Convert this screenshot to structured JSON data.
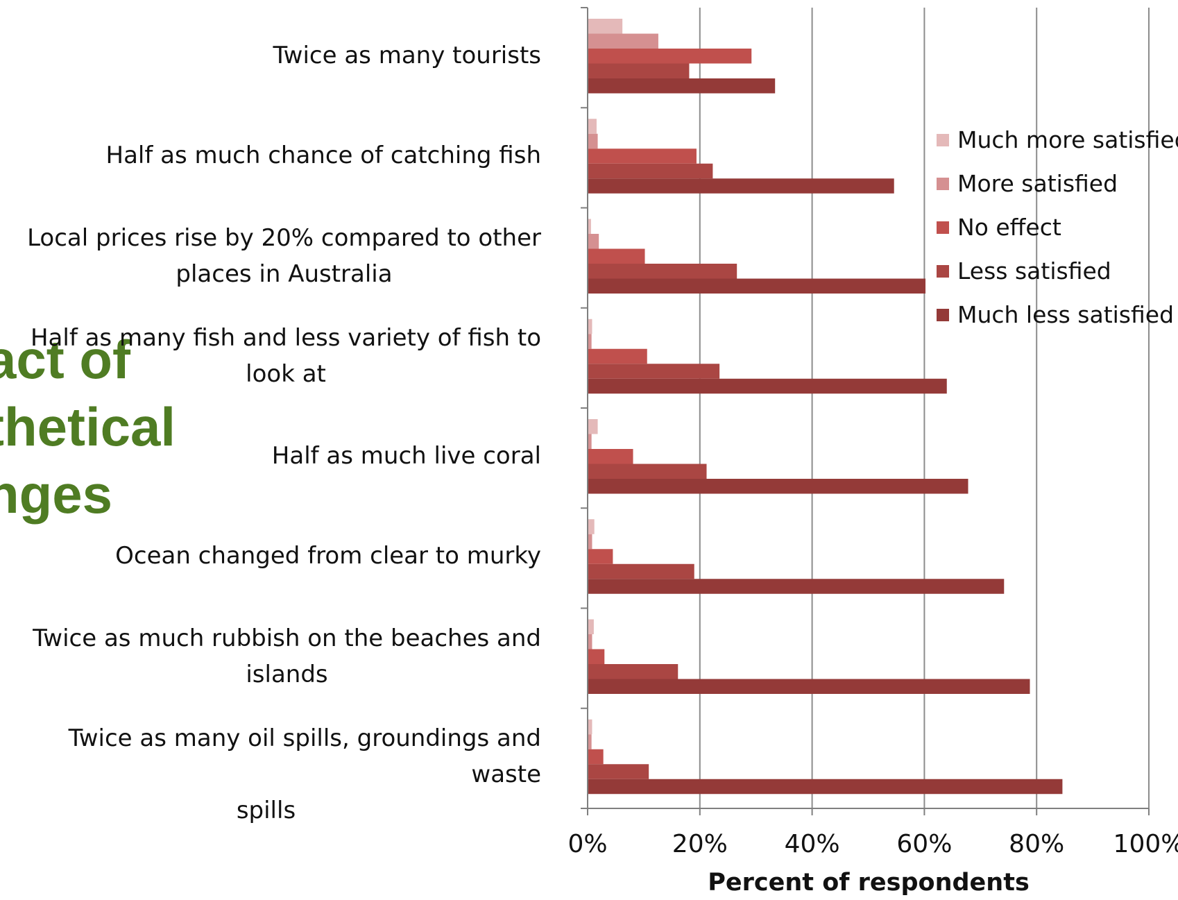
{
  "slide": {
    "title_lines": [
      "act of",
      "thetical",
      "nges"
    ]
  },
  "colors": {
    "title": "#4f7c23",
    "grid": "#8c8c8c",
    "axis": "#7f7f7f"
  },
  "chart_data": {
    "type": "bar",
    "orientation": "horizontal",
    "categories": [
      "Twice as many tourists",
      "Half as much chance of catching fish",
      "Local prices rise by 20% compared to other places in Australia",
      "Half as many fish and less variety of fish to look at",
      "Half as much live coral",
      "Ocean changed from clear to murky",
      "Twice as much rubbish on the beaches and islands",
      "Twice as many oil spills, groundings and waste spills"
    ],
    "category_label_lines": [
      [
        "Twice as many tourists"
      ],
      [
        "Half as much chance of catching fish"
      ],
      [
        "Local prices rise by 20% compared to other",
        "places in Australia"
      ],
      [
        "Half as many fish and less variety of fish to",
        "look at"
      ],
      [
        "Half as much live coral"
      ],
      [
        "Ocean changed from clear to murky"
      ],
      [
        "Twice as much rubbish on the beaches and",
        "islands"
      ],
      [
        "Twice as many oil spills, groundings and waste",
        "spills"
      ]
    ],
    "series": [
      {
        "name": "Much more satisfied",
        "color": "#e4b9b9",
        "values": [
          6.2,
          1.6,
          0.6,
          0.8,
          1.8,
          1.2,
          1.1,
          0.8
        ]
      },
      {
        "name": "More satisfied",
        "color": "#d59091",
        "values": [
          12.6,
          1.8,
          2.0,
          0.7,
          0.7,
          0.8,
          0.8,
          0.7
        ]
      },
      {
        "name": "No effect",
        "color": "#c0504d",
        "values": [
          29.2,
          19.4,
          10.2,
          10.6,
          8.1,
          4.5,
          3.0,
          2.8
        ]
      },
      {
        "name": "Less satisfied",
        "color": "#aa4643",
        "values": [
          18.1,
          22.3,
          26.6,
          23.5,
          21.2,
          19.0,
          16.1,
          10.9
        ]
      },
      {
        "name": "Much less satisfied",
        "color": "#943a38",
        "values": [
          33.4,
          54.6,
          60.2,
          64.0,
          67.8,
          74.2,
          78.8,
          84.6
        ]
      }
    ],
    "xlabel": "Percent of respondents",
    "ylabel": "",
    "xlim": [
      0,
      100
    ],
    "xticks": [
      "0%",
      "20%",
      "40%",
      "60%",
      "80%",
      "100%"
    ],
    "grid": true,
    "legend_position": "right"
  }
}
